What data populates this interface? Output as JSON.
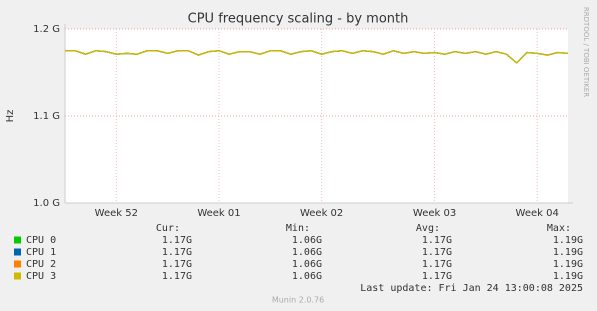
{
  "chart_data": {
    "type": "line",
    "title": "CPU frequency scaling - by month",
    "y_label": "Hz",
    "side_text": "RRDTOOL / TOBI OETIKER",
    "footer": "Munin 2.0.76",
    "last_update": "Last update: Fri Jan 24 13:00:08 2025",
    "ylim": [
      1.0,
      1.2
    ],
    "yticks": [
      {
        "value": 1.0,
        "label": "1.0 G"
      },
      {
        "value": 1.1,
        "label": "1.1 G"
      },
      {
        "value": 1.2,
        "label": "1.2 G"
      }
    ],
    "xlim": [
      0,
      49
    ],
    "xticks": [
      {
        "value": 5,
        "label": "Week 52"
      },
      {
        "value": 15,
        "label": "Week 01"
      },
      {
        "value": 25,
        "label": "Week 02"
      },
      {
        "value": 36,
        "label": "Week 03"
      },
      {
        "value": 46,
        "label": "Week 04"
      }
    ],
    "grid": true,
    "series": [
      {
        "name": "CPU 0",
        "color": "#00cc00",
        "values": [
          1.175,
          1.175,
          1.171,
          1.175,
          1.174,
          1.171,
          1.172,
          1.171,
          1.175,
          1.175,
          1.172,
          1.175,
          1.175,
          1.17,
          1.174,
          1.175,
          1.171,
          1.174,
          1.174,
          1.171,
          1.175,
          1.175,
          1.171,
          1.174,
          1.175,
          1.171,
          1.174,
          1.175,
          1.172,
          1.175,
          1.174,
          1.171,
          1.175,
          1.172,
          1.174,
          1.172,
          1.173,
          1.171,
          1.174,
          1.172,
          1.174,
          1.171,
          1.174,
          1.171,
          1.161,
          1.173,
          1.172,
          1.17,
          1.173,
          1.172
        ]
      },
      {
        "name": "CPU 1",
        "color": "#0066b3",
        "values": [
          1.175,
          1.175,
          1.171,
          1.175,
          1.174,
          1.171,
          1.172,
          1.171,
          1.175,
          1.175,
          1.172,
          1.175,
          1.175,
          1.17,
          1.174,
          1.175,
          1.171,
          1.174,
          1.174,
          1.171,
          1.175,
          1.175,
          1.171,
          1.174,
          1.175,
          1.171,
          1.174,
          1.175,
          1.172,
          1.175,
          1.174,
          1.171,
          1.175,
          1.172,
          1.174,
          1.172,
          1.173,
          1.171,
          1.174,
          1.172,
          1.174,
          1.171,
          1.174,
          1.171,
          1.161,
          1.173,
          1.172,
          1.17,
          1.173,
          1.172
        ]
      },
      {
        "name": "CPU 2",
        "color": "#ff8000",
        "values": [
          1.175,
          1.175,
          1.171,
          1.175,
          1.174,
          1.171,
          1.172,
          1.171,
          1.175,
          1.175,
          1.172,
          1.175,
          1.175,
          1.17,
          1.174,
          1.175,
          1.171,
          1.174,
          1.174,
          1.171,
          1.175,
          1.175,
          1.171,
          1.174,
          1.175,
          1.171,
          1.174,
          1.175,
          1.172,
          1.175,
          1.174,
          1.171,
          1.175,
          1.172,
          1.174,
          1.172,
          1.173,
          1.171,
          1.174,
          1.172,
          1.174,
          1.171,
          1.174,
          1.171,
          1.161,
          1.173,
          1.172,
          1.17,
          1.173,
          1.172
        ]
      },
      {
        "name": "CPU 3",
        "color": "#ccbb00",
        "values": [
          1.175,
          1.175,
          1.171,
          1.175,
          1.174,
          1.171,
          1.172,
          1.171,
          1.175,
          1.175,
          1.172,
          1.175,
          1.175,
          1.17,
          1.174,
          1.175,
          1.171,
          1.174,
          1.174,
          1.171,
          1.175,
          1.175,
          1.171,
          1.174,
          1.175,
          1.171,
          1.174,
          1.175,
          1.172,
          1.175,
          1.174,
          1.171,
          1.175,
          1.172,
          1.174,
          1.172,
          1.173,
          1.171,
          1.174,
          1.172,
          1.174,
          1.171,
          1.174,
          1.171,
          1.161,
          1.173,
          1.172,
          1.17,
          1.173,
          1.172
        ]
      }
    ],
    "legend_table": {
      "columns": [
        "Cur:",
        "Min:",
        "Avg:",
        "Max:"
      ],
      "rows": [
        [
          "1.17G",
          "1.06G",
          "1.17G",
          "1.19G"
        ],
        [
          "1.17G",
          "1.06G",
          "1.17G",
          "1.19G"
        ],
        [
          "1.17G",
          "1.06G",
          "1.17G",
          "1.19G"
        ],
        [
          "1.17G",
          "1.06G",
          "1.17G",
          "1.19G"
        ]
      ]
    }
  }
}
